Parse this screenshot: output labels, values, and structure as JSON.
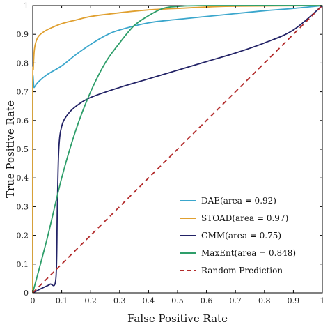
{
  "chart_data": {
    "type": "line",
    "xlabel": "False Positive Rate",
    "ylabel": "True Positive Rate",
    "xlim": [
      0,
      1
    ],
    "ylim": [
      0,
      1
    ],
    "x_ticks": [
      "0",
      "0.1",
      "0.2",
      "0.3",
      "0.4",
      "0.5",
      "0.6",
      "0.7",
      "0.8",
      "0.9",
      "1"
    ],
    "y_ticks": [
      "0",
      "0.1",
      "0.2",
      "0.3",
      "0.4",
      "0.5",
      "0.6",
      "0.7",
      "0.8",
      "0.9",
      "1"
    ],
    "grid": false,
    "legend_position": "bottom-right",
    "series": [
      {
        "name": "DAE(area = 0.92)",
        "color": "#3aa6cc",
        "style": "solid",
        "points": [
          [
            0,
            0
          ],
          [
            0,
            0.7
          ],
          [
            0.005,
            0.715
          ],
          [
            0.02,
            0.735
          ],
          [
            0.05,
            0.76
          ],
          [
            0.1,
            0.79
          ],
          [
            0.15,
            0.83
          ],
          [
            0.2,
            0.865
          ],
          [
            0.25,
            0.895
          ],
          [
            0.3,
            0.915
          ],
          [
            0.4,
            0.94
          ],
          [
            0.5,
            0.952
          ],
          [
            0.6,
            0.962
          ],
          [
            0.7,
            0.972
          ],
          [
            0.8,
            0.982
          ],
          [
            0.9,
            0.99
          ],
          [
            1,
            1
          ]
        ]
      },
      {
        "name": "STOAD(area = 0.97)",
        "color": "#e0a030",
        "style": "solid",
        "points": [
          [
            0,
            0
          ],
          [
            0,
            0.71
          ],
          [
            0.002,
            0.78
          ],
          [
            0.005,
            0.84
          ],
          [
            0.01,
            0.87
          ],
          [
            0.02,
            0.893
          ],
          [
            0.04,
            0.91
          ],
          [
            0.07,
            0.925
          ],
          [
            0.1,
            0.937
          ],
          [
            0.15,
            0.95
          ],
          [
            0.2,
            0.962
          ],
          [
            0.3,
            0.975
          ],
          [
            0.4,
            0.985
          ],
          [
            0.5,
            0.99
          ],
          [
            0.6,
            0.995
          ],
          [
            0.7,
            0.998
          ],
          [
            1,
            1
          ]
        ]
      },
      {
        "name": "GMM(area = 0.75)",
        "color": "#222266",
        "style": "solid",
        "points": [
          [
            0,
            0
          ],
          [
            0.02,
            0.01
          ],
          [
            0.04,
            0.02
          ],
          [
            0.06,
            0.03
          ],
          [
            0.08,
            0.05
          ],
          [
            0.085,
            0.3
          ],
          [
            0.09,
            0.5
          ],
          [
            0.1,
            0.58
          ],
          [
            0.12,
            0.62
          ],
          [
            0.15,
            0.65
          ],
          [
            0.2,
            0.68
          ],
          [
            0.3,
            0.715
          ],
          [
            0.4,
            0.745
          ],
          [
            0.5,
            0.775
          ],
          [
            0.6,
            0.805
          ],
          [
            0.7,
            0.835
          ],
          [
            0.8,
            0.87
          ],
          [
            0.9,
            0.915
          ],
          [
            1,
            1
          ]
        ]
      },
      {
        "name": "MaxEnt(area = 0.848)",
        "color": "#2e9e6a",
        "style": "solid",
        "points": [
          [
            0,
            0
          ],
          [
            0.05,
            0.19
          ],
          [
            0.1,
            0.4
          ],
          [
            0.15,
            0.57
          ],
          [
            0.2,
            0.7
          ],
          [
            0.25,
            0.8
          ],
          [
            0.3,
            0.87
          ],
          [
            0.35,
            0.93
          ],
          [
            0.4,
            0.965
          ],
          [
            0.45,
            0.99
          ],
          [
            0.5,
            0.997
          ],
          [
            0.6,
            1
          ],
          [
            1,
            1
          ]
        ]
      },
      {
        "name": "Random Prediction",
        "color": "#b22a2a",
        "style": "dashed",
        "points": [
          [
            0,
            0
          ],
          [
            1,
            1
          ]
        ]
      }
    ]
  }
}
